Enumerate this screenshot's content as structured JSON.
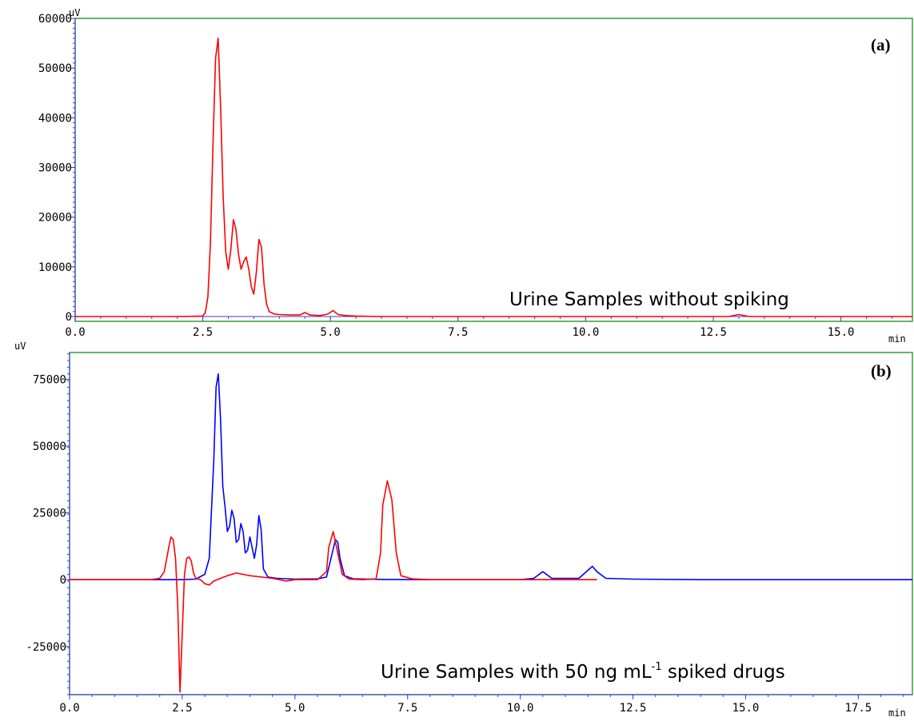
{
  "chart_data": [
    {
      "type": "line",
      "panel_label": "(a)",
      "annotation": "Urine Samples without spiking",
      "y_unit": "uV",
      "x_unit": "min",
      "xlim": [
        0.0,
        16.4
      ],
      "ylim": [
        0,
        60000
      ],
      "x_ticks": [
        "0.0",
        "2.5",
        "5.0",
        "7.5",
        "10.0",
        "12.5",
        "15.0"
      ],
      "y_ticks": [
        "0",
        "10000",
        "20000",
        "30000",
        "40000",
        "50000",
        "60000"
      ],
      "colors": {
        "frame": "#3a9a3a",
        "axis": "#3b3bd6",
        "red": "#ff0000",
        "blue": "#0000ff"
      },
      "series": [
        {
          "color": "#ff0000",
          "x": [
            0.0,
            1.0,
            2.0,
            2.5,
            2.55,
            2.6,
            2.65,
            2.7,
            2.75,
            2.8,
            2.85,
            2.9,
            2.95,
            3.0,
            3.05,
            3.1,
            3.15,
            3.2,
            3.25,
            3.3,
            3.35,
            3.4,
            3.45,
            3.5,
            3.55,
            3.6,
            3.65,
            3.7,
            3.75,
            3.8,
            3.9,
            4.0,
            4.2,
            4.4,
            4.5,
            4.6,
            4.8,
            4.95,
            5.05,
            5.15,
            5.3,
            5.5,
            6.0,
            8.0,
            10.0,
            12.8,
            13.0,
            13.2,
            16.4
          ],
          "y": [
            0,
            0,
            0,
            100,
            800,
            4000,
            15000,
            35000,
            52000,
            56000,
            42000,
            24000,
            13000,
            9500,
            13500,
            19500,
            17500,
            12500,
            9500,
            11000,
            12000,
            9500,
            6000,
            4500,
            9000,
            15500,
            14000,
            6500,
            2500,
            1000,
            500,
            400,
            300,
            300,
            800,
            300,
            200,
            500,
            1200,
            400,
            200,
            100,
            0,
            0,
            0,
            0,
            400,
            0,
            0
          ]
        }
      ]
    },
    {
      "type": "line",
      "panel_label": "(b)",
      "annotation_main": "Urine Samples with 50 ng mL",
      "annotation_sup": "-1",
      "annotation_tail": " spiked drugs",
      "y_unit": "uV",
      "x_unit": "min",
      "xlim": [
        0.0,
        18.7
      ],
      "ylim": [
        -43000,
        85000
      ],
      "x_ticks": [
        "0.0",
        "2.5",
        "5.0",
        "7.5",
        "10.0",
        "12.5",
        "15.0",
        "17.5"
      ],
      "y_ticks": [
        "-25000",
        "0",
        "25000",
        "50000",
        "75000"
      ],
      "colors": {
        "frame": "#3a9a3a",
        "axis": "#3b3bd6",
        "red": "#ff0000",
        "blue": "#0000ff"
      },
      "series": [
        {
          "color": "#0000ff",
          "x": [
            0.0,
            2.5,
            2.8,
            3.0,
            3.1,
            3.2,
            3.25,
            3.3,
            3.35,
            3.4,
            3.45,
            3.5,
            3.55,
            3.6,
            3.65,
            3.7,
            3.75,
            3.8,
            3.85,
            3.9,
            3.95,
            4.0,
            4.05,
            4.1,
            4.15,
            4.2,
            4.25,
            4.3,
            4.4,
            4.6,
            5.0,
            5.5,
            5.7,
            5.8,
            5.9,
            5.95,
            6.0,
            6.1,
            6.3,
            7.0,
            8.0,
            10.0,
            10.3,
            10.5,
            10.7,
            11.3,
            11.5,
            11.6,
            11.7,
            11.9,
            12.5,
            14.0,
            16.0,
            18.7
          ],
          "y": [
            0,
            0,
            200,
            2000,
            8000,
            45000,
            72000,
            77000,
            60000,
            35000,
            27000,
            18000,
            20000,
            26000,
            23000,
            14000,
            15000,
            21000,
            18000,
            10000,
            11000,
            16000,
            12000,
            8000,
            13000,
            24000,
            19000,
            4000,
            1000,
            500,
            200,
            300,
            1000,
            8000,
            15000,
            14000,
            8000,
            1500,
            300,
            100,
            0,
            0,
            500,
            3000,
            500,
            500,
            3500,
            5000,
            3000,
            500,
            200,
            0,
            0,
            0
          ]
        },
        {
          "color": "#ff0000",
          "x": [
            0.0,
            1.8,
            2.0,
            2.1,
            2.2,
            2.25,
            2.3,
            2.35,
            2.4,
            2.45,
            2.5,
            2.55,
            2.6,
            2.65,
            2.7,
            2.75,
            2.8,
            2.9,
            3.0,
            3.1,
            3.2,
            3.35,
            3.5,
            3.7,
            4.0,
            4.5,
            4.8,
            5.0,
            5.5,
            5.7,
            5.75,
            5.85,
            5.95,
            6.05,
            6.2,
            6.5,
            6.8,
            6.9,
            6.95,
            7.05,
            7.15,
            7.25,
            7.35,
            7.6,
            8.0,
            10.0,
            11.7
          ],
          "y": [
            0,
            0,
            500,
            3000,
            12000,
            16000,
            15000,
            8000,
            -10000,
            -42000,
            -20000,
            2000,
            8000,
            8500,
            7000,
            2500,
            500,
            0,
            -1500,
            -2000,
            -500,
            500,
            1500,
            2500,
            1500,
            500,
            -500,
            0,
            0,
            3000,
            12000,
            18000,
            10000,
            2000,
            200,
            0,
            300,
            10000,
            28000,
            37000,
            30000,
            10000,
            1500,
            300,
            0,
            0,
            0
          ]
        }
      ]
    }
  ]
}
